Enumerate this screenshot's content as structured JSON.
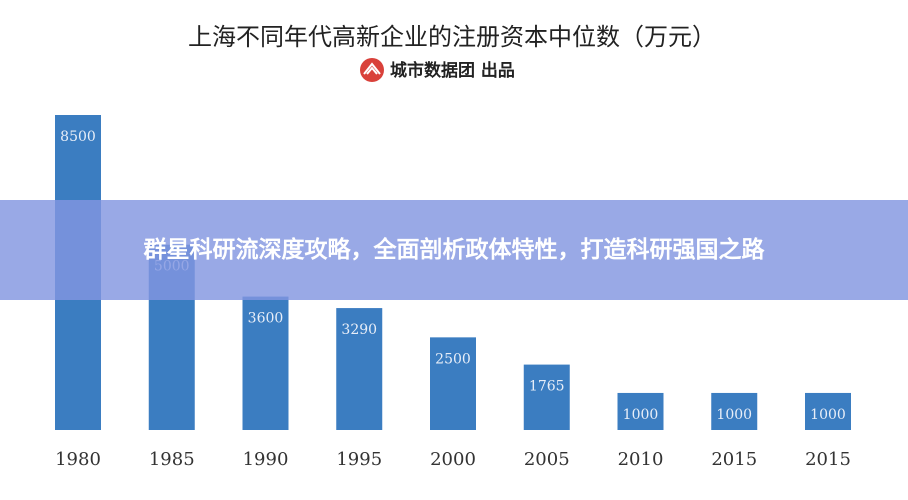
{
  "chart_data": {
    "type": "bar",
    "title": "上海不同年代高新企业的注册资本中位数（万元）",
    "subtitle": "城市数据团  出品",
    "categories": [
      "1980",
      "1985",
      "1990",
      "1995",
      "2000",
      "2005",
      "2010",
      "2015",
      "2015"
    ],
    "values": [
      8500,
      5000,
      3600,
      3290,
      2500,
      1765,
      1000,
      1000,
      1000
    ],
    "color": "#3b7dc1"
  },
  "overlay": {
    "text": "群星科研流深度攻略，全面剖析政体特性，打造科研强国之路"
  }
}
